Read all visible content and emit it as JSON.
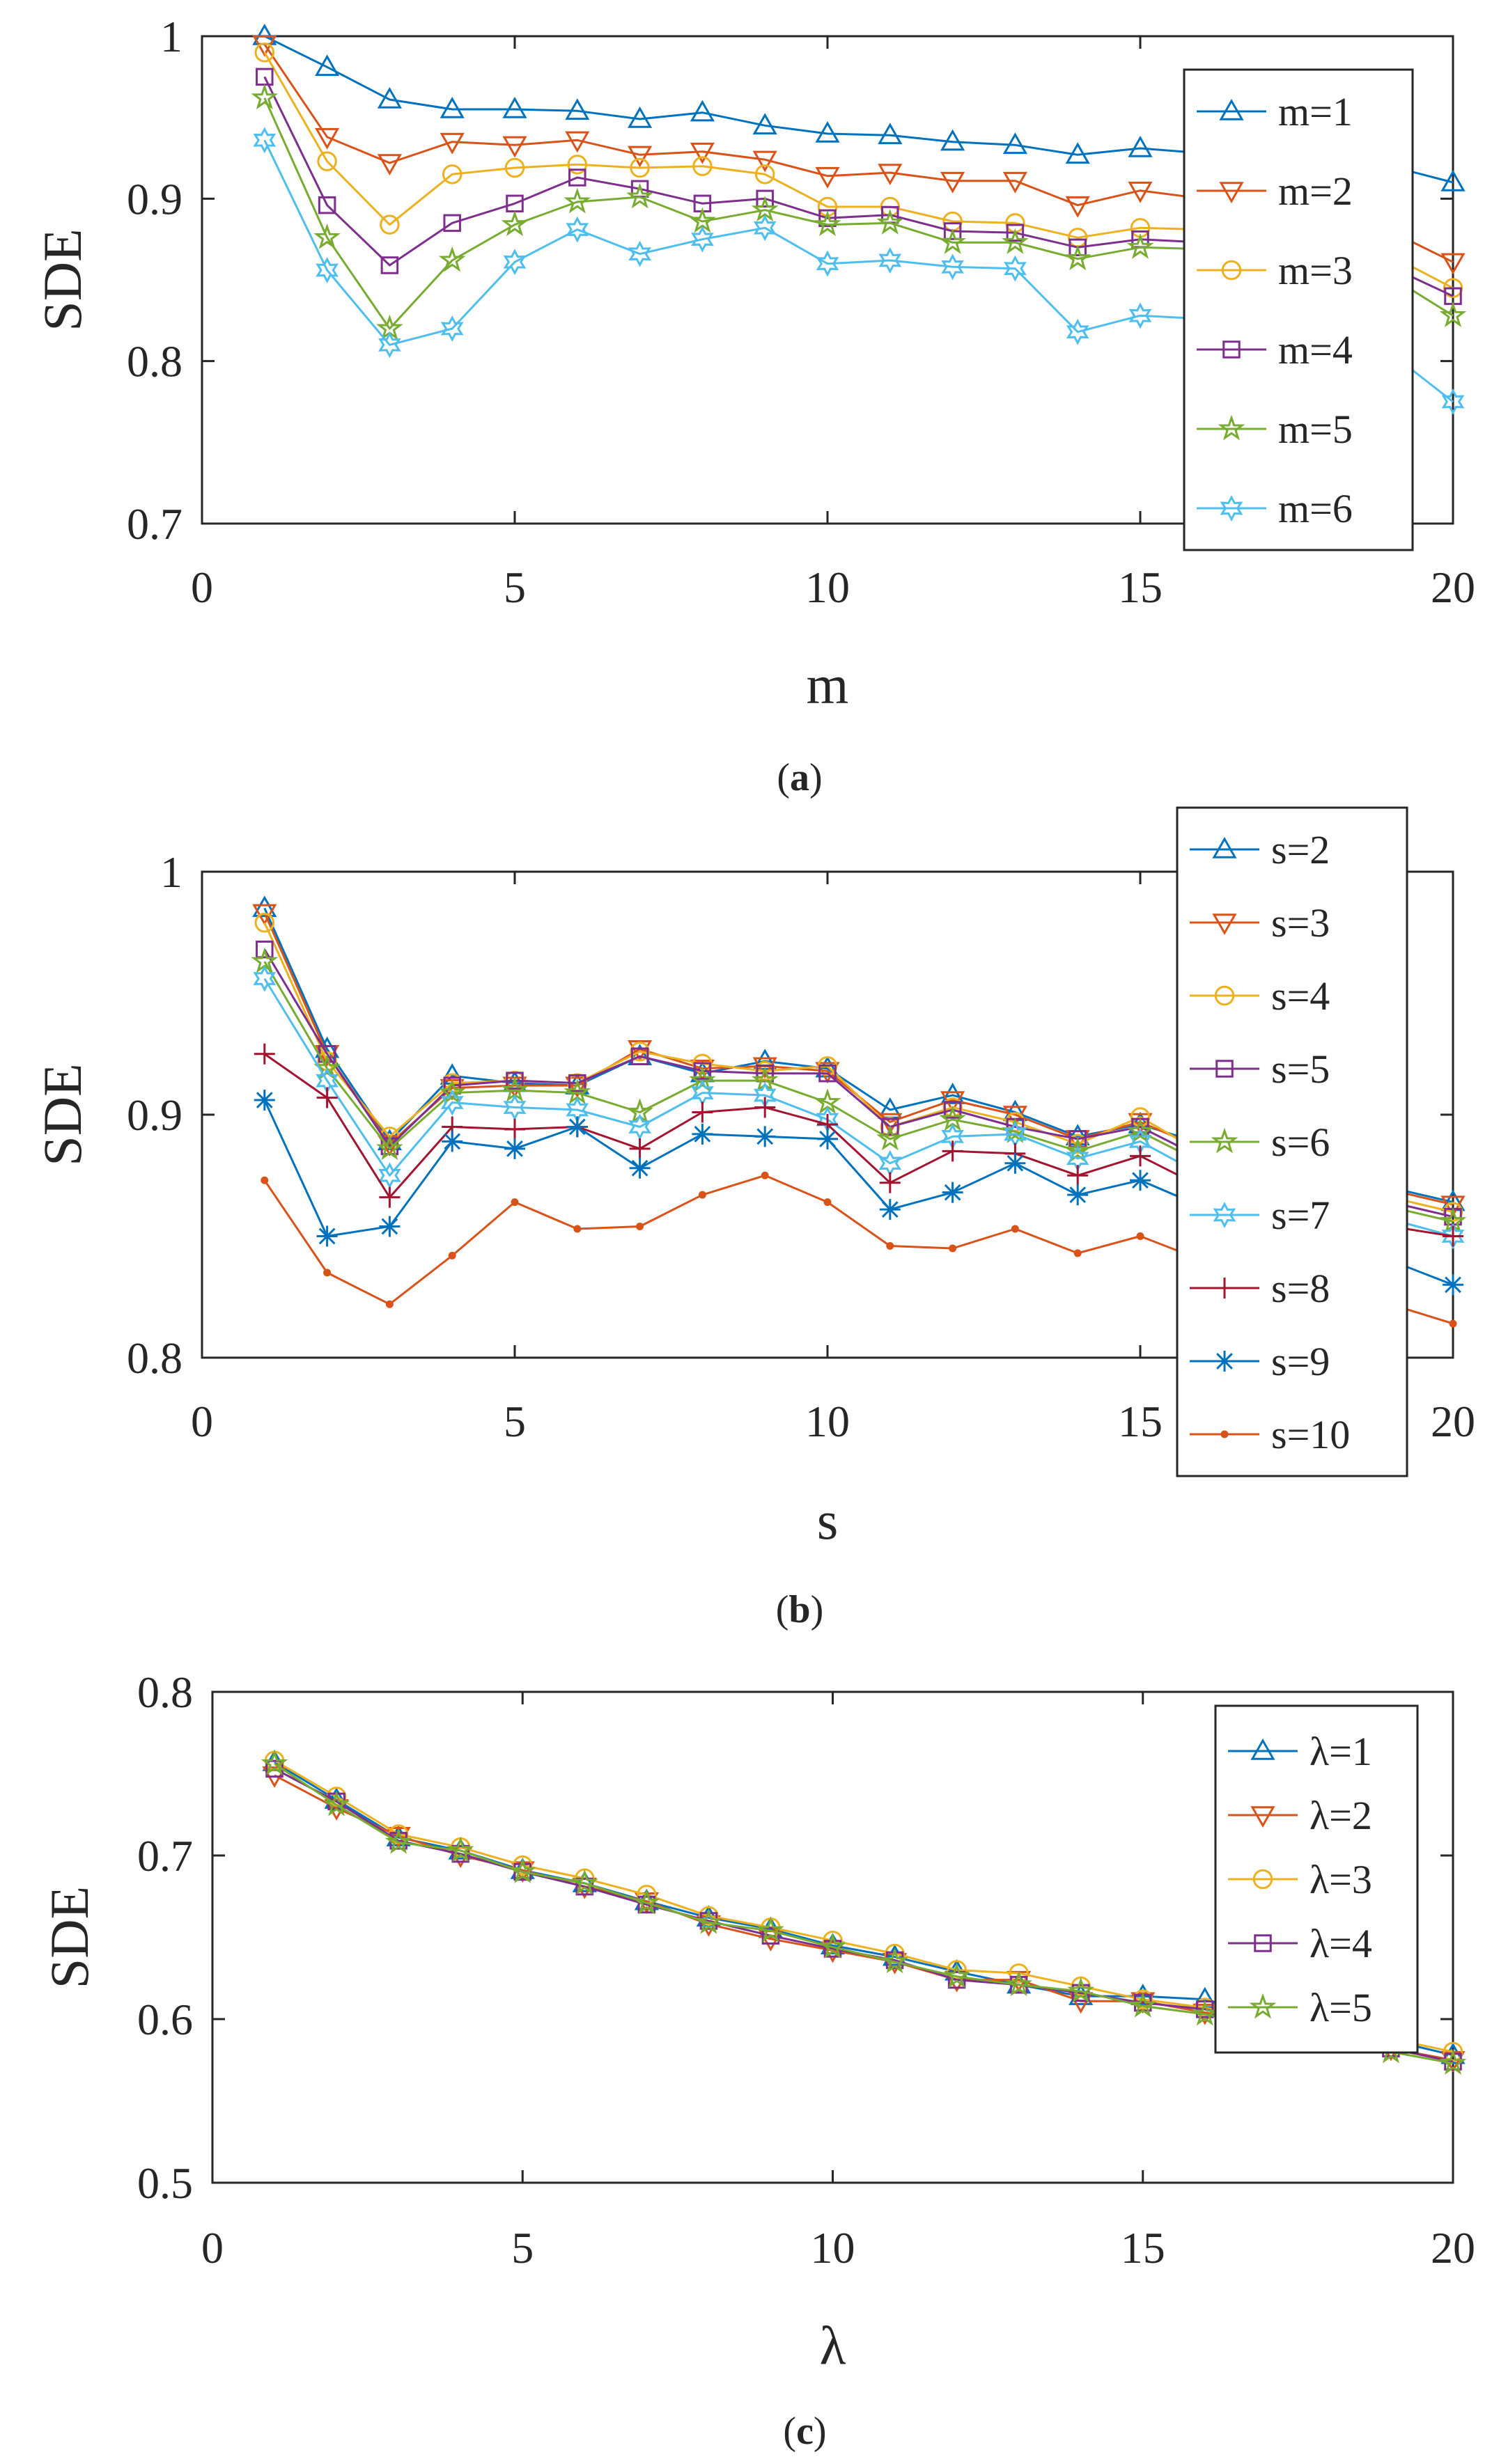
{
  "chart_data": [
    {
      "type": "line",
      "panel": "(a)",
      "caption_letter": "a",
      "xlabel": "m",
      "ylabel": "SDE",
      "xlim": [
        0,
        20
      ],
      "ylim": [
        0.7,
        1
      ],
      "xticks": [
        "0",
        "5",
        "10",
        "15",
        "20"
      ],
      "xtick_values": [
        0,
        5,
        10,
        15,
        20
      ],
      "yticks": [
        "0.7",
        "0.8",
        "0.9",
        "1"
      ],
      "ytick_values": [
        0.7,
        0.8,
        0.9,
        1.0
      ],
      "legend_position": "top-right",
      "x": [
        1,
        2,
        3,
        4,
        5,
        6,
        7,
        8,
        9,
        10,
        11,
        12,
        13,
        14,
        15,
        16,
        17,
        18,
        19,
        20
      ],
      "series": [
        {
          "name": "m=1",
          "color": "#0072BD",
          "marker": "triangle-up",
          "values": [
            1.0,
            0.981,
            0.961,
            0.955,
            0.955,
            0.954,
            0.949,
            0.953,
            0.945,
            0.94,
            0.939,
            0.935,
            0.933,
            0.927,
            0.931,
            0.928,
            0.925,
            0.922,
            0.92,
            0.91
          ]
        },
        {
          "name": "m=2",
          "color": "#D95319",
          "marker": "triangle-down",
          "values": [
            0.995,
            0.938,
            0.922,
            0.935,
            0.933,
            0.936,
            0.927,
            0.929,
            0.924,
            0.914,
            0.916,
            0.911,
            0.911,
            0.896,
            0.905,
            0.9,
            0.895,
            0.89,
            0.88,
            0.861
          ]
        },
        {
          "name": "m=3",
          "color": "#EDB120",
          "marker": "circle",
          "values": [
            0.99,
            0.923,
            0.884,
            0.915,
            0.919,
            0.921,
            0.919,
            0.92,
            0.915,
            0.895,
            0.895,
            0.886,
            0.885,
            0.876,
            0.882,
            0.881,
            0.878,
            0.872,
            0.865,
            0.845
          ]
        },
        {
          "name": "m=4",
          "color": "#7E2F8E",
          "marker": "square",
          "values": [
            0.975,
            0.896,
            0.859,
            0.885,
            0.897,
            0.913,
            0.906,
            0.897,
            0.9,
            0.888,
            0.89,
            0.88,
            0.879,
            0.87,
            0.875,
            0.873,
            0.87,
            0.865,
            0.858,
            0.84
          ]
        },
        {
          "name": "m=5",
          "color": "#77AC30",
          "marker": "pentagram",
          "values": [
            0.962,
            0.876,
            0.82,
            0.862,
            0.884,
            0.898,
            0.901,
            0.886,
            0.893,
            0.884,
            0.885,
            0.873,
            0.873,
            0.863,
            0.87,
            0.869,
            0.865,
            0.86,
            0.852,
            0.828
          ]
        },
        {
          "name": "m=6",
          "color": "#4DBEEE",
          "marker": "hexagram",
          "values": [
            0.936,
            0.856,
            0.81,
            0.82,
            0.861,
            0.881,
            0.866,
            0.875,
            0.882,
            0.86,
            0.862,
            0.858,
            0.857,
            0.818,
            0.828,
            0.826,
            0.822,
            0.815,
            0.805,
            0.775
          ]
        }
      ]
    },
    {
      "type": "line",
      "panel": "(b)",
      "caption_letter": "b",
      "xlabel": "s",
      "ylabel": "SDE",
      "xlim": [
        0,
        20
      ],
      "ylim": [
        0.8,
        1
      ],
      "xticks": [
        "0",
        "5",
        "10",
        "15",
        "20"
      ],
      "xtick_values": [
        0,
        5,
        10,
        15,
        20
      ],
      "yticks": [
        "0.8",
        "0.9",
        "1"
      ],
      "ytick_values": [
        0.8,
        0.9,
        1.0
      ],
      "legend_position": "top-right",
      "x": [
        1,
        2,
        3,
        4,
        5,
        6,
        7,
        8,
        9,
        10,
        11,
        12,
        13,
        14,
        15,
        16,
        17,
        18,
        19,
        20
      ],
      "series": [
        {
          "name": "s=2",
          "color": "#0072BD",
          "marker": "triangle-up",
          "values": [
            0.985,
            0.927,
            0.889,
            0.916,
            0.913,
            0.912,
            0.924,
            0.917,
            0.922,
            0.919,
            0.902,
            0.908,
            0.901,
            0.891,
            0.896,
            0.888,
            0.882,
            0.876,
            0.87,
            0.864
          ]
        },
        {
          "name": "s=3",
          "color": "#D95319",
          "marker": "triangle-down",
          "values": [
            0.983,
            0.925,
            0.888,
            0.911,
            0.912,
            0.912,
            0.927,
            0.919,
            0.92,
            0.918,
            0.897,
            0.906,
            0.9,
            0.89,
            0.897,
            0.886,
            0.88,
            0.874,
            0.869,
            0.863
          ]
        },
        {
          "name": "s=4",
          "color": "#EDB120",
          "marker": "circle",
          "values": [
            0.979,
            0.922,
            0.891,
            0.913,
            0.914,
            0.913,
            0.926,
            0.921,
            0.918,
            0.92,
            0.895,
            0.903,
            0.897,
            0.888,
            0.899,
            0.884,
            0.878,
            0.872,
            0.866,
            0.86
          ]
        },
        {
          "name": "s=5",
          "color": "#7E2F8E",
          "marker": "square",
          "values": [
            0.968,
            0.925,
            0.887,
            0.912,
            0.914,
            0.913,
            0.924,
            0.918,
            0.917,
            0.917,
            0.895,
            0.902,
            0.895,
            0.89,
            0.895,
            0.882,
            0.876,
            0.87,
            0.864,
            0.858
          ]
        },
        {
          "name": "s=6",
          "color": "#77AC30",
          "marker": "pentagram",
          "values": [
            0.963,
            0.919,
            0.886,
            0.909,
            0.91,
            0.909,
            0.901,
            0.914,
            0.914,
            0.905,
            0.89,
            0.898,
            0.893,
            0.885,
            0.893,
            0.88,
            0.874,
            0.868,
            0.862,
            0.856
          ]
        },
        {
          "name": "s=7",
          "color": "#4DBEEE",
          "marker": "hexagram",
          "values": [
            0.956,
            0.914,
            0.875,
            0.905,
            0.903,
            0.902,
            0.895,
            0.909,
            0.908,
            0.898,
            0.88,
            0.891,
            0.892,
            0.882,
            0.889,
            0.875,
            0.869,
            0.863,
            0.857,
            0.85
          ]
        },
        {
          "name": "s=8",
          "color": "#A2142F",
          "marker": "plus",
          "values": [
            0.925,
            0.907,
            0.866,
            0.895,
            0.894,
            0.895,
            0.886,
            0.901,
            0.903,
            0.896,
            0.872,
            0.885,
            0.884,
            0.875,
            0.883,
            0.87,
            0.864,
            0.858,
            0.854,
            0.85
          ]
        },
        {
          "name": "s=9",
          "color": "#0072BD",
          "marker": "asterisk",
          "values": [
            0.906,
            0.85,
            0.854,
            0.889,
            0.886,
            0.895,
            0.878,
            0.892,
            0.891,
            0.89,
            0.861,
            0.868,
            0.88,
            0.867,
            0.873,
            0.862,
            0.855,
            0.848,
            0.84,
            0.83
          ]
        },
        {
          "name": "s=10",
          "color": "#D95319",
          "marker": "dot",
          "values": [
            0.873,
            0.835,
            0.822,
            0.842,
            0.864,
            0.853,
            0.854,
            0.867,
            0.875,
            0.864,
            0.846,
            0.845,
            0.853,
            0.843,
            0.85,
            0.84,
            0.834,
            0.828,
            0.822,
            0.814
          ]
        }
      ]
    },
    {
      "type": "line",
      "panel": "(c)",
      "caption_letter": "c",
      "xlabel": "λ",
      "ylabel": "SDE",
      "xlim": [
        0,
        20
      ],
      "ylim": [
        0.5,
        0.8
      ],
      "xticks": [
        "0",
        "5",
        "10",
        "15",
        "20"
      ],
      "xtick_values": [
        0,
        5,
        10,
        15,
        20
      ],
      "yticks": [
        "0.5",
        "0.6",
        "0.7",
        "0.8"
      ],
      "ytick_values": [
        0.5,
        0.6,
        0.7,
        0.8
      ],
      "legend_position": "top-right",
      "x": [
        1,
        2,
        3,
        4,
        5,
        6,
        7,
        8,
        9,
        10,
        11,
        12,
        13,
        14,
        15,
        16,
        17,
        18,
        19,
        20
      ],
      "series": [
        {
          "name": "λ=1",
          "color": "#0072BD",
          "marker": "triangle-up",
          "values": [
            0.757,
            0.734,
            0.711,
            0.703,
            0.691,
            0.683,
            0.672,
            0.662,
            0.655,
            0.645,
            0.638,
            0.629,
            0.621,
            0.614,
            0.614,
            0.612,
            0.602,
            0.595,
            0.587,
            0.578
          ]
        },
        {
          "name": "λ=2",
          "color": "#D95319",
          "marker": "triangle-down",
          "values": [
            0.749,
            0.729,
            0.712,
            0.7,
            0.691,
            0.681,
            0.672,
            0.658,
            0.649,
            0.642,
            0.635,
            0.624,
            0.624,
            0.611,
            0.611,
            0.604,
            0.597,
            0.59,
            0.582,
            0.575
          ]
        },
        {
          "name": "λ=3",
          "color": "#EDB120",
          "marker": "circle",
          "values": [
            0.758,
            0.736,
            0.713,
            0.705,
            0.694,
            0.686,
            0.676,
            0.663,
            0.656,
            0.648,
            0.64,
            0.63,
            0.628,
            0.62,
            0.612,
            0.607,
            0.6,
            0.594,
            0.588,
            0.58
          ]
        },
        {
          "name": "λ=4",
          "color": "#7E2F8E",
          "marker": "square",
          "values": [
            0.753,
            0.733,
            0.709,
            0.701,
            0.69,
            0.681,
            0.67,
            0.66,
            0.651,
            0.643,
            0.636,
            0.624,
            0.621,
            0.616,
            0.61,
            0.606,
            0.598,
            0.59,
            0.582,
            0.574
          ]
        },
        {
          "name": "λ=5",
          "color": "#77AC30",
          "marker": "pentagram",
          "values": [
            0.756,
            0.731,
            0.708,
            0.703,
            0.69,
            0.683,
            0.671,
            0.659,
            0.654,
            0.644,
            0.635,
            0.626,
            0.621,
            0.617,
            0.608,
            0.603,
            0.596,
            0.588,
            0.58,
            0.573
          ]
        }
      ]
    }
  ]
}
